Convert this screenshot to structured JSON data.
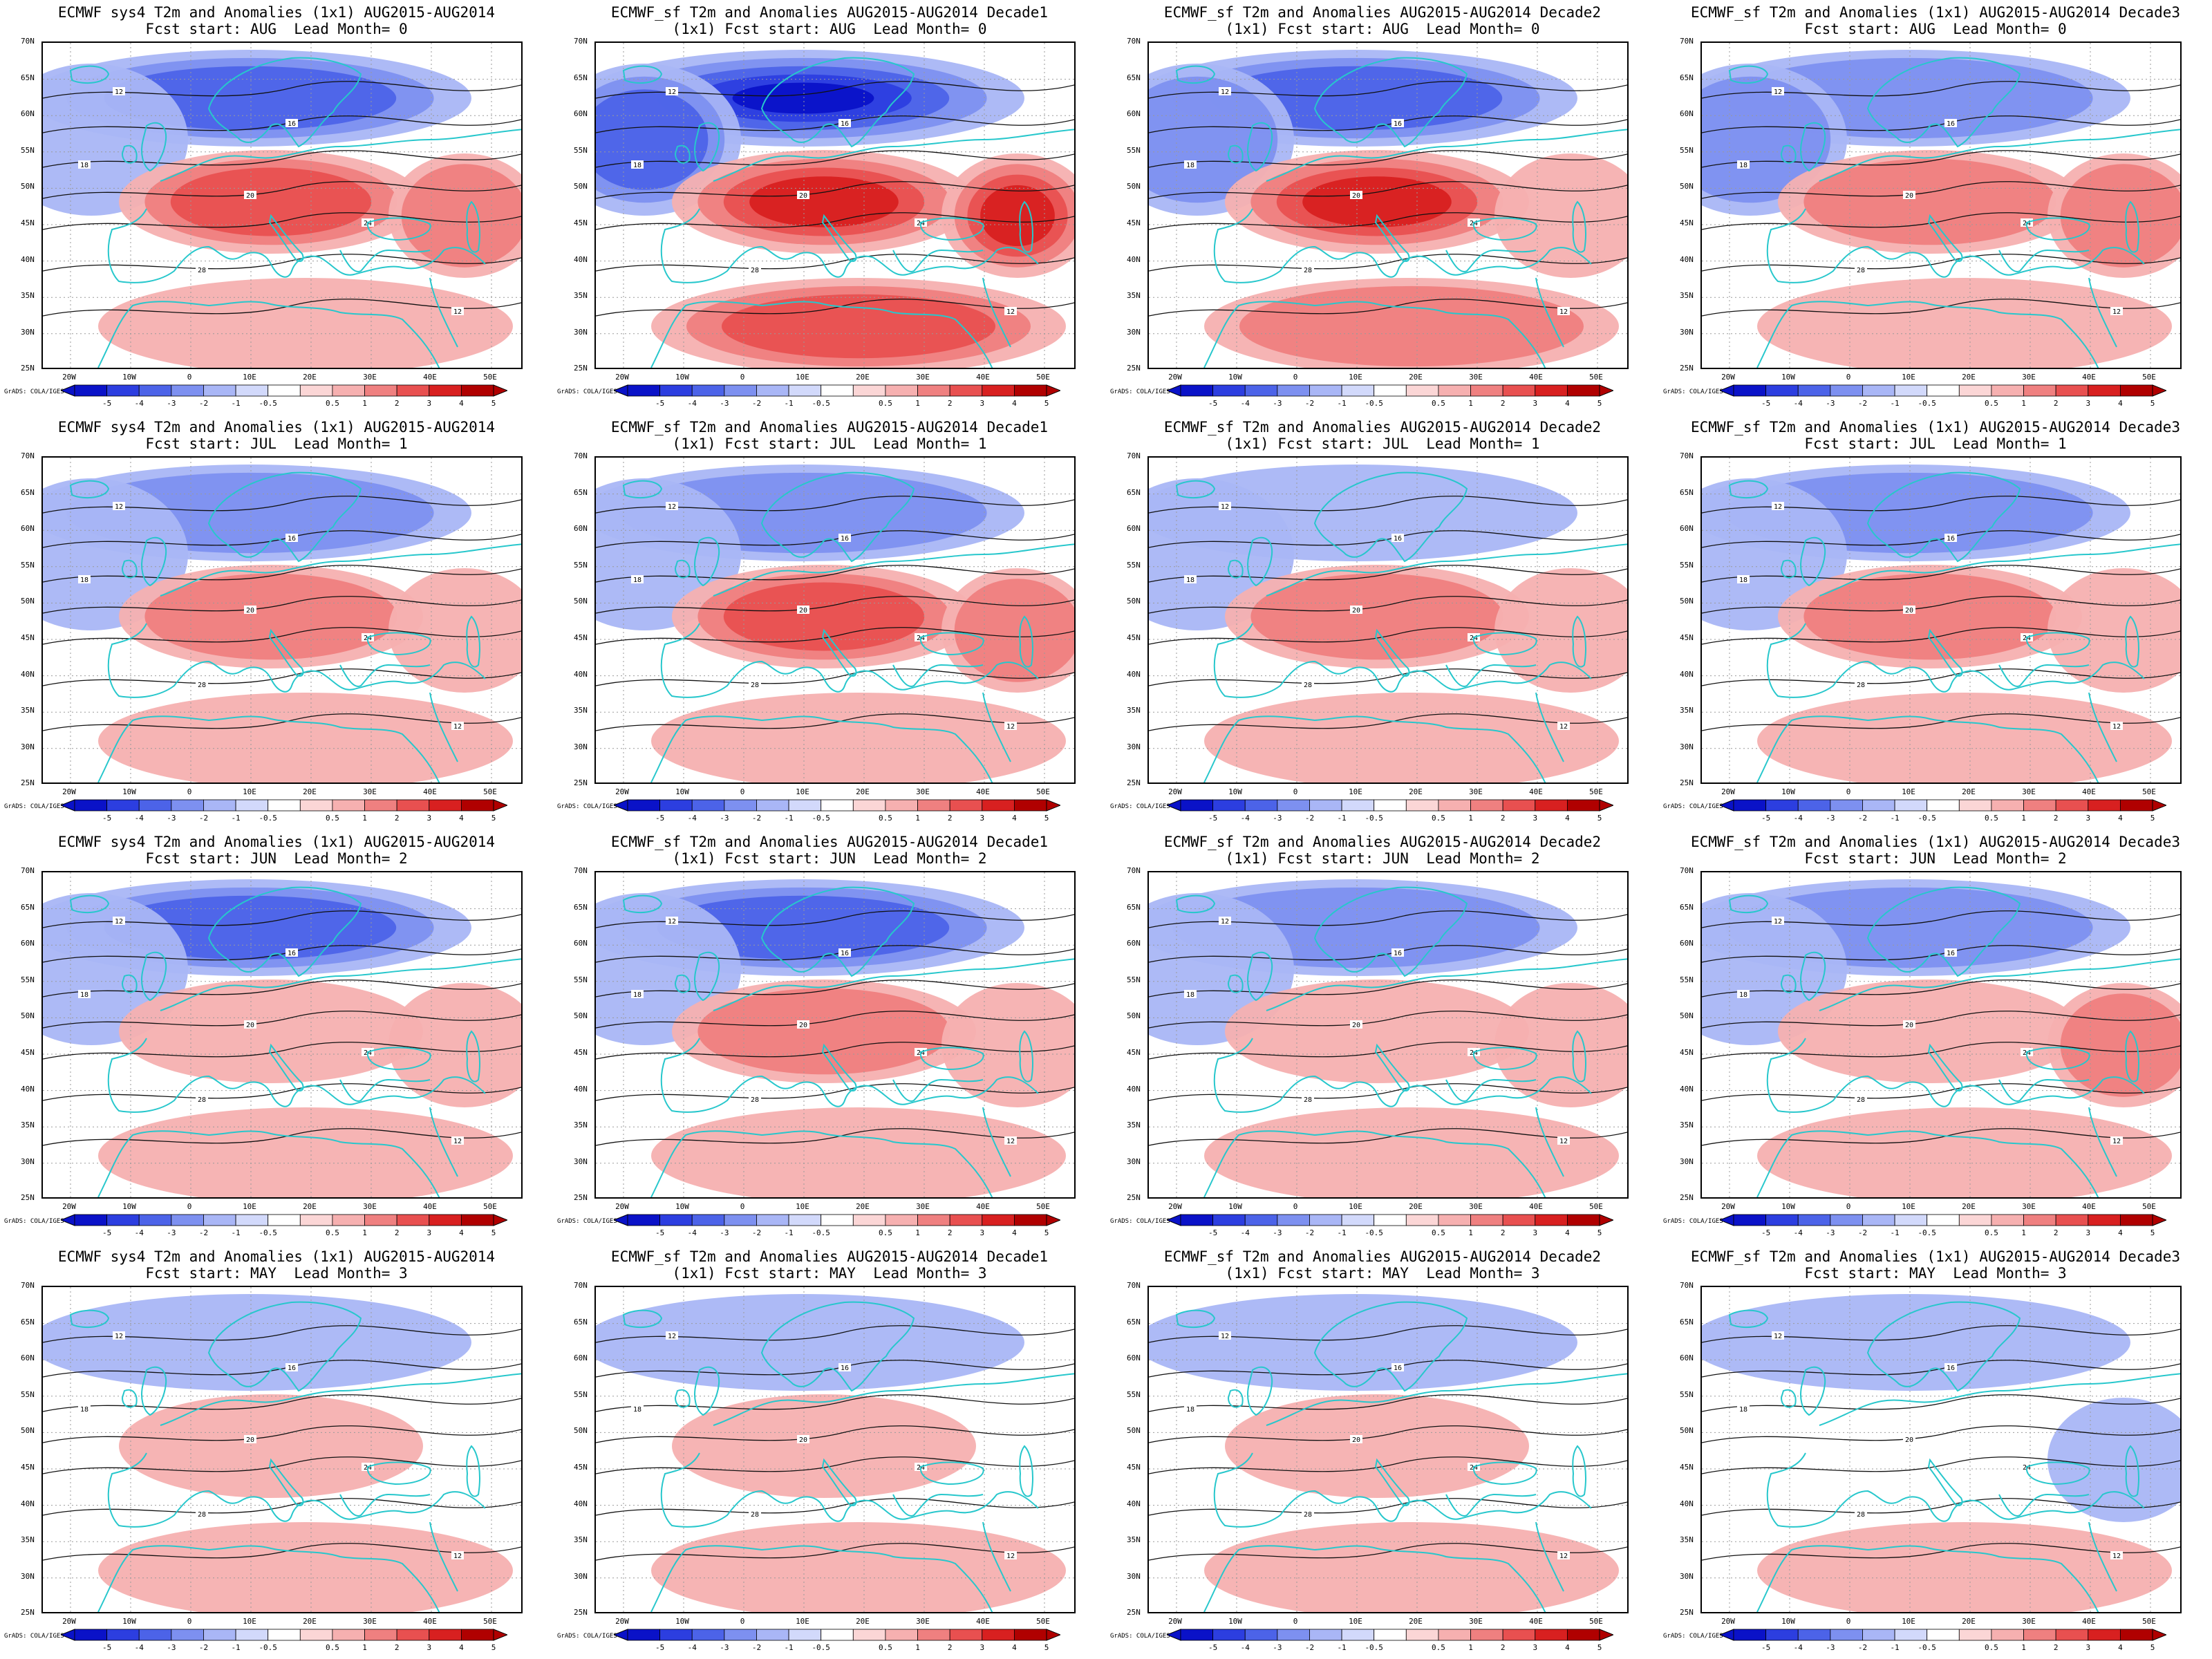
{
  "figure": {
    "colors": {
      "coast": "#27c7cc",
      "contour": "#111111",
      "neg": [
        "#0a12c8",
        "#2c3ee0",
        "#4c63e8",
        "#7d90f0",
        "#a9b6f6",
        "#d2d9fb"
      ],
      "pos": [
        "#fbd6d6",
        "#f6b0b0",
        "#ef8080",
        "#e85050",
        "#d82020",
        "#b00000"
      ]
    },
    "colorbar": {
      "labels": [
        "-5",
        "-4",
        "-3",
        "-2",
        "-1",
        "-0.5",
        "0.5",
        "1",
        "2",
        "3",
        "4",
        "5"
      ]
    },
    "axes": {
      "lat_labels": [
        "70N",
        "65N",
        "60N",
        "55N",
        "50N",
        "45N",
        "40N",
        "35N",
        "30N",
        "25N"
      ],
      "lon_labels": [
        "20W",
        "10W",
        "0",
        "10E",
        "20E",
        "30E",
        "40E",
        "50E"
      ]
    },
    "credit": "GrADS: COLA/IGES",
    "rows": [
      {
        "lead": "Lead Month= 0",
        "start": "AUG"
      },
      {
        "lead": "Lead Month= 1",
        "start": "JUL"
      },
      {
        "lead": "Lead Month= 2",
        "start": "JUN"
      },
      {
        "lead": "Lead Month= 3",
        "start": "MAY"
      }
    ],
    "panels": [
      {
        "line1": "ECMWF sys4 T2m and Anomalies (1x1) AUG2015-AUG2014",
        "line2": "Fcst start: AUG  Lead Month= 0",
        "row": 0,
        "col": 0,
        "anom": {
          "north": -3,
          "central": 3,
          "south": 1,
          "west": -1,
          "east": 2
        }
      },
      {
        "line1": "ECMWF_sf T2m and Anomalies AUG2015-AUG2014 Decade1",
        "line2": "(1x1) Fcst start: AUG  Lead Month= 0",
        "row": 0,
        "col": 1,
        "anom": {
          "north": -5,
          "central": 4,
          "south": 3,
          "west": -3,
          "east": 4
        }
      },
      {
        "line1": "ECMWF_sf T2m and Anomalies AUG2015-AUG2014 Decade2",
        "line2": "(1x1) Fcst start: AUG  Lead Month= 0",
        "row": 0,
        "col": 2,
        "anom": {
          "north": -3,
          "central": 4,
          "south": 2,
          "west": -2,
          "east": 1
        }
      },
      {
        "line1": "ECMWF_sf T2m and Anomalies (1x1) AUG2015-AUG2014 Decade3",
        "line2": "Fcst start: AUG  Lead Month= 0",
        "row": 0,
        "col": 3,
        "anom": {
          "north": -2,
          "central": 2,
          "south": 1,
          "west": -2,
          "east": 2
        }
      },
      {
        "line1": "ECMWF sys4 T2m and Anomalies (1x1) AUG2015-AUG2014",
        "line2": "Fcst start: JUL  Lead Month= 1",
        "row": 1,
        "col": 0,
        "anom": {
          "north": -2,
          "central": 2,
          "south": 1,
          "west": -1,
          "east": 1
        }
      },
      {
        "line1": "ECMWF_sf T2m and Anomalies AUG2015-AUG2014 Decade1",
        "line2": "(1x1) Fcst start: JUL  Lead Month= 1",
        "row": 1,
        "col": 1,
        "anom": {
          "north": -2,
          "central": 3,
          "south": 1,
          "west": -1,
          "east": 2
        }
      },
      {
        "line1": "ECMWF_sf T2m and Anomalies AUG2015-AUG2014 Decade2",
        "line2": "(1x1) Fcst start: JUL  Lead Month= 1",
        "row": 1,
        "col": 2,
        "anom": {
          "north": -1,
          "central": 2,
          "south": 1,
          "west": -1,
          "east": 1
        }
      },
      {
        "line1": "ECMWF_sf T2m and Anomalies (1x1) AUG2015-AUG2014 Decade3",
        "line2": "Fcst start: JUL  Lead Month= 1",
        "row": 1,
        "col": 3,
        "anom": {
          "north": -2,
          "central": 2,
          "south": 1,
          "west": -1,
          "east": 1
        }
      },
      {
        "line1": "ECMWF sys4 T2m and Anomalies (1x1) AUG2015-AUG2014",
        "line2": "Fcst start: JUN  Lead Month= 2",
        "row": 2,
        "col": 0,
        "anom": {
          "north": -3,
          "central": 1,
          "south": 1,
          "west": -1,
          "east": 1
        }
      },
      {
        "line1": "ECMWF_sf T2m and Anomalies AUG2015-AUG2014 Decade1",
        "line2": "(1x1) Fcst start: JUN  Lead Month= 2",
        "row": 2,
        "col": 1,
        "anom": {
          "north": -3,
          "central": 2,
          "south": 1,
          "west": -1,
          "east": 1
        }
      },
      {
        "line1": "ECMWF_sf T2m and Anomalies AUG2015-AUG2014 Decade2",
        "line2": "(1x1) Fcst start: JUN  Lead Month= 2",
        "row": 2,
        "col": 2,
        "anom": {
          "north": -2,
          "central": 1,
          "south": 1,
          "west": -1,
          "east": 1
        }
      },
      {
        "line1": "ECMWF_sf T2m and Anomalies (1x1) AUG2015-AUG2014 Decade3",
        "line2": "Fcst start: JUN  Lead Month= 2",
        "row": 2,
        "col": 3,
        "anom": {
          "north": -2,
          "central": 1,
          "south": 1,
          "west": -1,
          "east": 2
        }
      },
      {
        "line1": "ECMWF sys4 T2m and Anomalies (1x1) AUG2015-AUG2014",
        "line2": "Fcst start: MAY  Lead Month= 3",
        "row": 3,
        "col": 0,
        "anom": {
          "north": -1,
          "central": 1,
          "south": 1,
          "west": 0,
          "east": 0
        }
      },
      {
        "line1": "ECMWF_sf T2m and Anomalies AUG2015-AUG2014 Decade1",
        "line2": "(1x1) Fcst start: MAY  Lead Month= 3",
        "row": 3,
        "col": 1,
        "anom": {
          "north": -1,
          "central": 1,
          "south": 1,
          "west": 0,
          "east": 0
        }
      },
      {
        "line1": "ECMWF_sf T2m and Anomalies AUG2015-AUG2014 Decade2",
        "line2": "(1x1) Fcst start: MAY  Lead Month= 3",
        "row": 3,
        "col": 2,
        "anom": {
          "north": -1,
          "central": 1,
          "south": 1,
          "west": 0,
          "east": 0
        }
      },
      {
        "line1": "ECMWF_sf T2m and Anomalies (1x1) AUG2015-AUG2014 Decade3",
        "line2": "Fcst start: MAY  Lead Month= 3",
        "row": 3,
        "col": 3,
        "anom": {
          "north": -1,
          "central": 0,
          "south": 1,
          "west": 0,
          "east": -1
        }
      }
    ],
    "contour_labels": [
      "12",
      "16",
      "18",
      "20",
      "24",
      "28"
    ]
  }
}
